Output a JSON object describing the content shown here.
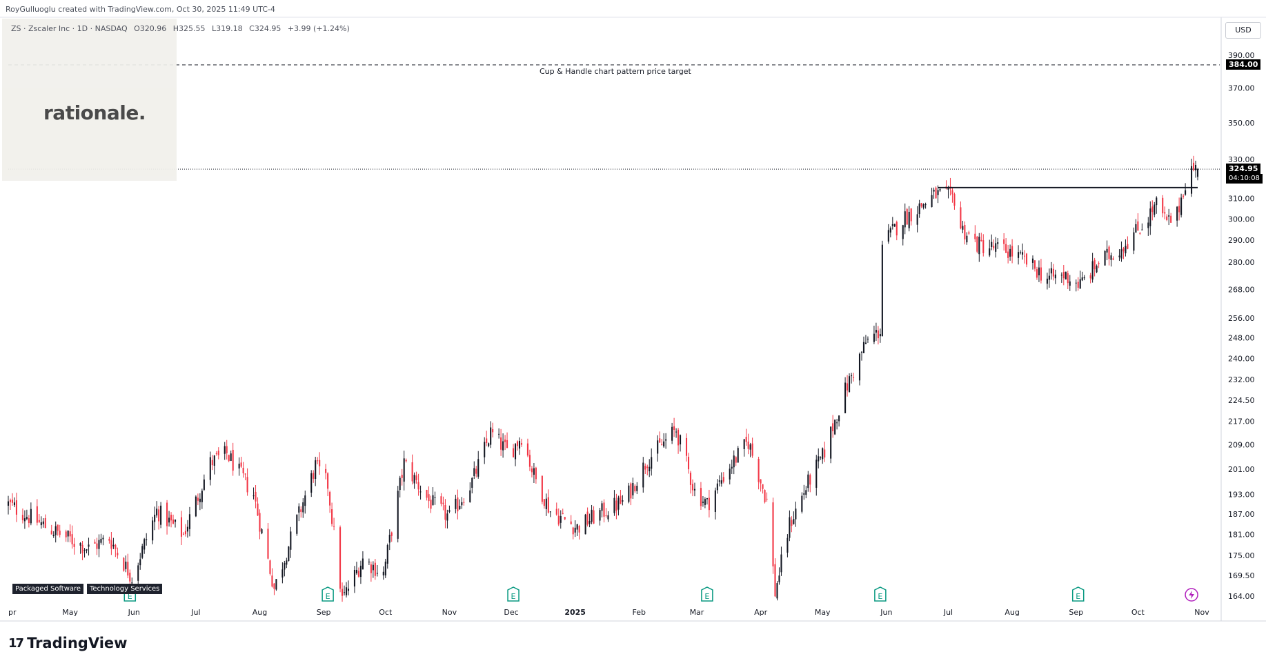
{
  "header": {
    "credit": "RoyGulluoglu created with TradingView.com, Oct 30, 2025 11:49 UTC-4"
  },
  "legend": {
    "symbol": "ZS · Zscaler Inc · 1D · NASDAQ",
    "open": "O320.96",
    "high": "H325.55",
    "low": "L319.18",
    "close": "C324.95",
    "change": "+3.99 (+1.24%)"
  },
  "watermark": {
    "text": "rationale."
  },
  "currency_button": "USD",
  "price_tags": {
    "target": "384.00",
    "last": "324.95",
    "countdown": "04:10:08"
  },
  "annotation": "Cup & Handle chart pattern price target",
  "sector_tags": [
    "Packaged Software",
    "Technology Services"
  ],
  "earnings_marker": "E",
  "branding": {
    "name": "TradingView",
    "mark": "17"
  },
  "colors": {
    "up": "#131722",
    "down": "#f23645",
    "background": "#ffffff",
    "grid_axis": "#d1d4dc"
  },
  "chart_data": {
    "type": "candlestick",
    "y_axis": {
      "scale": "log",
      "ticks": [
        "390.00",
        "370.00",
        "350.00",
        "330.00",
        "310.00",
        "300.00",
        "290.00",
        "280.00",
        "268.00",
        "256.00",
        "248.00",
        "240.00",
        "232.00",
        "224.50",
        "217.00",
        "209.00",
        "201.00",
        "193.00",
        "187.00",
        "181.00",
        "175.00",
        "169.50",
        "164.00"
      ],
      "currency": "USD"
    },
    "x_axis": {
      "ticks": [
        "Apr",
        "May",
        "Jun",
        "Jul",
        "Aug",
        "Sep",
        "Oct",
        "Nov",
        "Dec",
        "2025",
        "Feb",
        "Mar",
        "Apr",
        "May",
        "Jun",
        "Jul",
        "Aug",
        "Sep",
        "Oct",
        "Nov"
      ]
    },
    "anchors": [
      [
        "2024-04-01",
        190
      ],
      [
        "2024-04-20",
        183
      ],
      [
        "2024-05-10",
        177
      ],
      [
        "2024-05-20",
        180
      ],
      [
        "2024-05-31",
        169
      ],
      [
        "2024-06-12",
        188
      ],
      [
        "2024-06-25",
        181
      ],
      [
        "2024-07-08",
        203
      ],
      [
        "2024-07-16",
        206
      ],
      [
        "2024-07-29",
        193
      ],
      [
        "2024-08-08",
        166
      ],
      [
        "2024-08-20",
        187
      ],
      [
        "2024-08-28",
        202
      ],
      [
        "2024-09-03",
        196
      ],
      [
        "2024-09-10",
        163
      ],
      [
        "2024-09-20",
        174
      ],
      [
        "2024-09-30",
        170
      ],
      [
        "2024-10-10",
        203
      ],
      [
        "2024-10-22",
        191
      ],
      [
        "2024-11-01",
        186
      ],
      [
        "2024-11-12",
        197
      ],
      [
        "2024-11-21",
        213
      ],
      [
        "2024-11-30",
        206
      ],
      [
        "2024-12-06",
        212
      ],
      [
        "2024-12-12",
        199
      ],
      [
        "2024-12-20",
        188
      ],
      [
        "2025-01-02",
        183
      ],
      [
        "2025-01-12",
        187
      ],
      [
        "2025-01-25",
        191
      ],
      [
        "2025-02-05",
        204
      ],
      [
        "2025-02-19",
        214
      ],
      [
        "2025-02-28",
        194
      ],
      [
        "2025-03-06",
        190
      ],
      [
        "2025-03-16",
        201
      ],
      [
        "2025-03-26",
        210
      ],
      [
        "2025-04-04",
        191
      ],
      [
        "2025-04-08",
        165
      ],
      [
        "2025-04-15",
        184
      ],
      [
        "2025-04-25",
        198
      ],
      [
        "2025-05-01",
        205
      ],
      [
        "2025-05-12",
        228
      ],
      [
        "2025-05-22",
        246
      ],
      [
        "2025-05-29",
        251
      ],
      [
        "2025-05-30",
        288
      ],
      [
        "2025-06-09",
        300
      ],
      [
        "2025-06-25",
        312
      ],
      [
        "2025-07-04",
        310
      ],
      [
        "2025-07-07",
        296
      ],
      [
        "2025-07-15",
        288
      ],
      [
        "2025-07-30",
        285
      ],
      [
        "2025-08-08",
        280
      ],
      [
        "2025-08-18",
        273
      ],
      [
        "2025-08-27",
        274
      ],
      [
        "2025-09-03",
        270
      ],
      [
        "2025-09-12",
        280
      ],
      [
        "2025-09-22",
        286
      ],
      [
        "2025-10-03",
        297
      ],
      [
        "2025-10-10",
        307
      ],
      [
        "2025-10-15",
        298
      ],
      [
        "2025-10-20",
        302
      ],
      [
        "2025-10-23",
        315
      ],
      [
        "2025-10-27",
        325
      ],
      [
        "2025-10-30",
        325
      ]
    ],
    "last_candle": {
      "open": 320.96,
      "high": 325.55,
      "low": 319.18,
      "close": 324.95
    },
    "horizontal_lines": [
      {
        "label": "Cup & Handle chart pattern price target",
        "price": 384.0,
        "style": "dashed",
        "from": "2024-04-01",
        "to": "2025-11-10"
      },
      {
        "price": 315.5,
        "style": "solid",
        "from": "2025-06-26",
        "to": "2025-10-30"
      },
      {
        "price": 324.95,
        "style": "dotted",
        "from": "2024-04-01",
        "to": "2025-11-10"
      }
    ],
    "earnings_dates": [
      "2024-05-30",
      "2024-09-03",
      "2024-12-02",
      "2025-03-06",
      "2025-05-29",
      "2025-09-02"
    ],
    "event_marker_date": "2025-10-27"
  }
}
